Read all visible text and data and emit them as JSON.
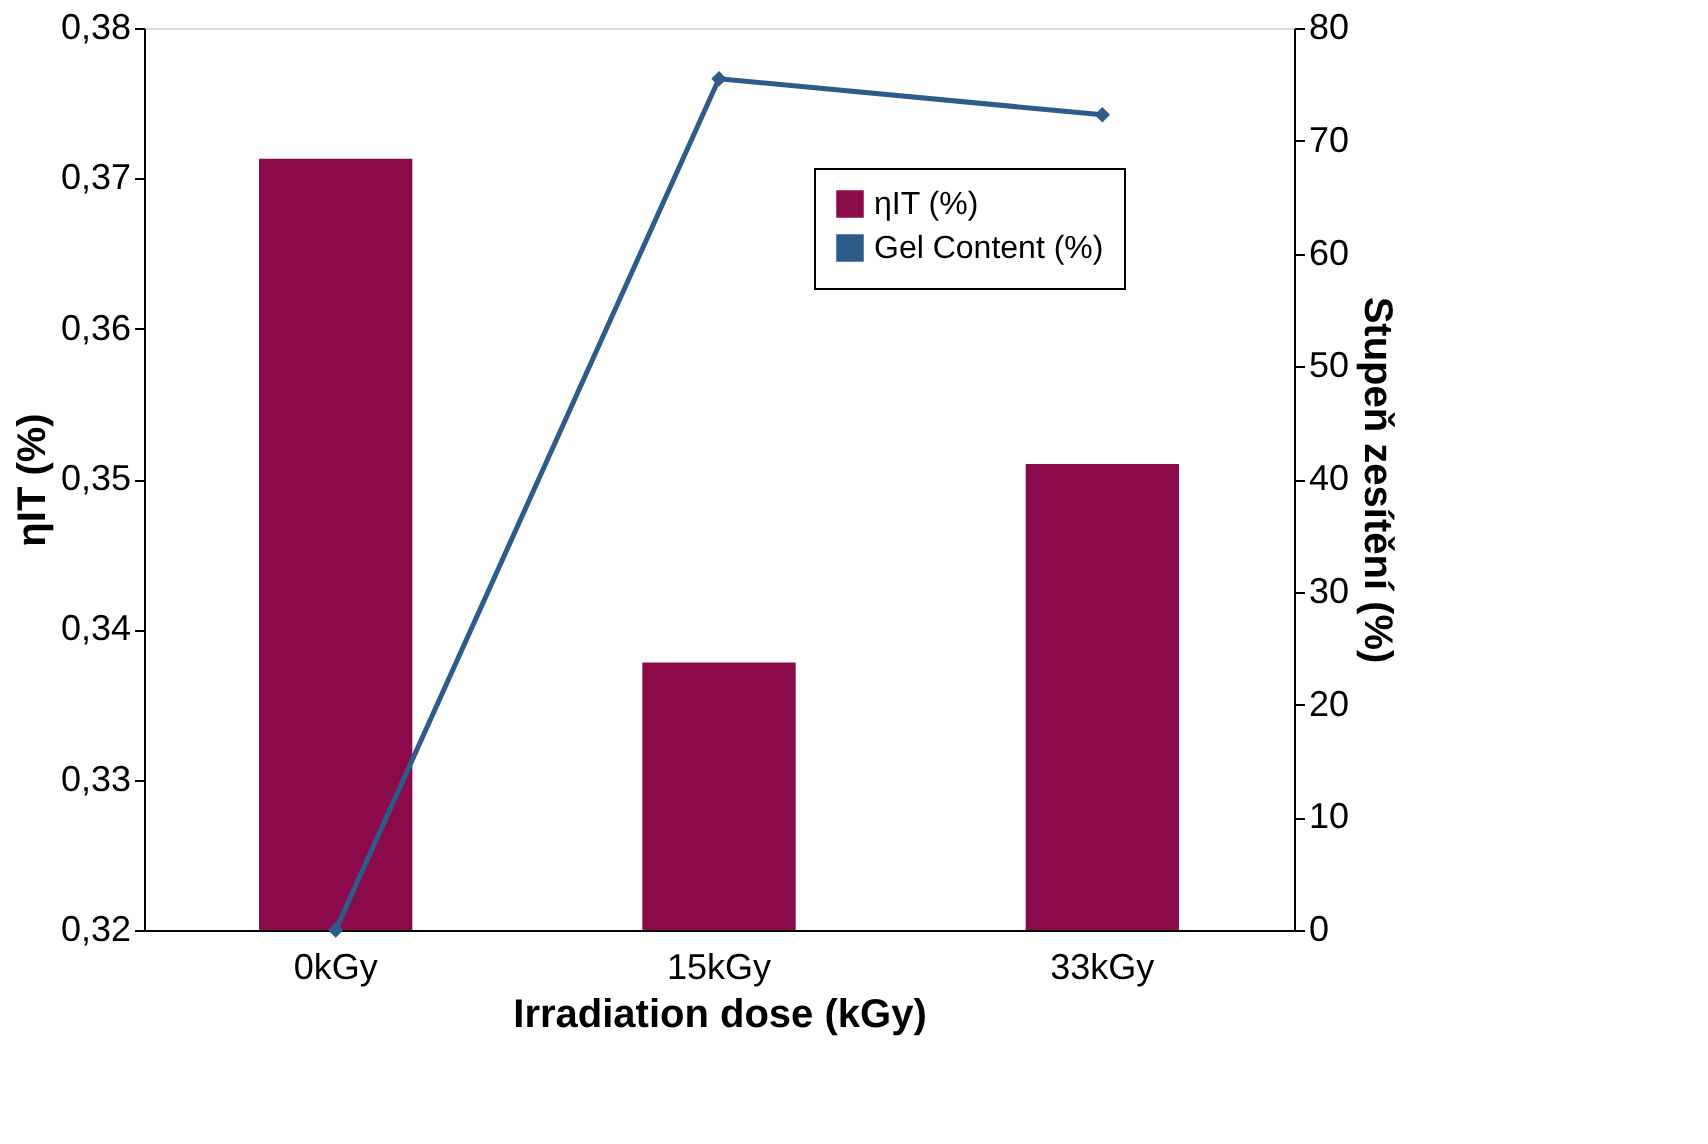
{
  "chart_data": {
    "type": "bar",
    "xlabel": "Irradiation dose (kGy)",
    "ylabel": "ηIT (%)",
    "y2label": "Stupeň zesítění (%)",
    "categories": [
      "0kGy",
      "15kGy",
      "33kGy"
    ],
    "series": [
      {
        "name": "ηIT (%)",
        "color": "#8b0a4a",
        "values": [
          0.3713,
          0.3378,
          0.351
        ]
      },
      {
        "name": "Gel Content (%)",
        "type": "line",
        "axis": "y2",
        "color": "#2e5c8a",
        "marker": "diamond",
        "values": [
          0,
          75.5,
          72.3
        ]
      }
    ],
    "ylim": [
      0.32,
      0.38
    ],
    "yticks": [
      {
        "value": 0.32,
        "label": "0,32"
      },
      {
        "value": 0.33,
        "label": "0,33"
      },
      {
        "value": 0.34,
        "label": "0,34"
      },
      {
        "value": 0.35,
        "label": "0,35"
      },
      {
        "value": 0.36,
        "label": "0,36"
      },
      {
        "value": 0.37,
        "label": "0,37"
      },
      {
        "value": 0.38,
        "label": "0,38"
      }
    ],
    "y2lim": [
      0,
      80
    ],
    "y2ticks": [
      0,
      10,
      20,
      30,
      40,
      50,
      60,
      70,
      80
    ],
    "legend": "top right",
    "grid": false
  }
}
